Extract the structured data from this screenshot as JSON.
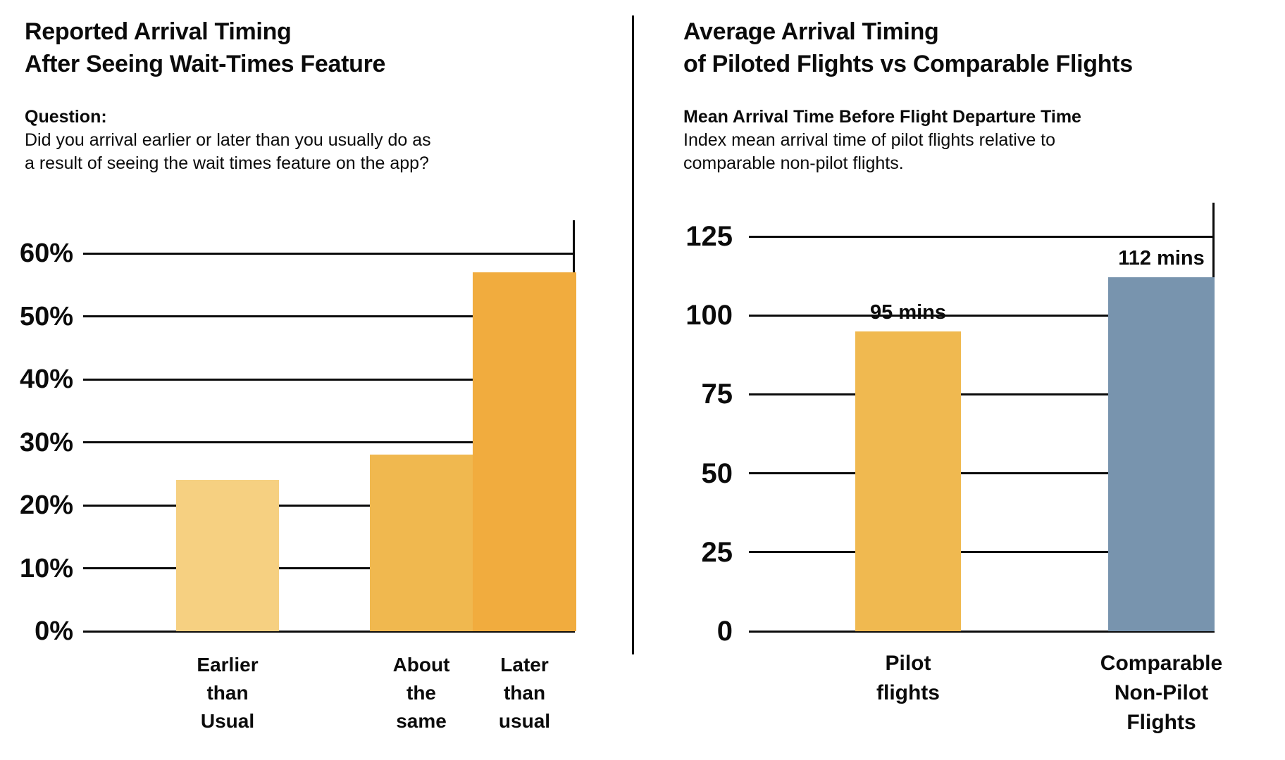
{
  "page": {
    "background": "#ffffff",
    "ink_color": "#0b0b0b"
  },
  "left_panel": {
    "title_lines": [
      "Reported Arrival Timing",
      "After Seeing Wait-Times Feature"
    ],
    "question_label": "Question:",
    "question_lines": [
      "Did you arrival earlier or later than you usually do as",
      "a result of seeing the wait times feature on the app?"
    ]
  },
  "right_panel": {
    "title_lines": [
      "Average Arrival Timing",
      "of Piloted Flights vs Comparable Flights"
    ],
    "subtitle_label": "Mean Arrival Time Before Flight Departure Time",
    "subtitle_lines": [
      "Index mean arrival time of pilot flights relative to",
      "comparable non-pilot flights."
    ]
  },
  "chart_data": [
    {
      "type": "bar",
      "title": "Reported Arrival Timing After Seeing Wait-Times Feature",
      "categories": [
        "Earlier than Usual",
        "About the same",
        "Later than usual"
      ],
      "category_lines": [
        [
          "Earlier",
          "than",
          "Usual"
        ],
        [
          "About",
          "the",
          "same"
        ],
        [
          "Later",
          "than",
          "usual"
        ]
      ],
      "values": [
        24,
        28,
        57
      ],
      "value_unit": "%",
      "data_labels": null,
      "yticks": [
        60,
        50,
        40,
        30,
        20,
        10,
        0
      ],
      "ytick_labels": [
        "60%",
        "50%",
        "40%",
        "30%",
        "20%",
        "10%",
        "0%"
      ],
      "ylim": [
        0,
        60
      ],
      "grid": true,
      "legend": false,
      "bar_colors": [
        "#F6D081",
        "#F0B84F",
        "#F1AC3E"
      ]
    },
    {
      "type": "bar",
      "title": "Average Arrival Timing of Piloted Flights vs Comparable Flights",
      "categories": [
        "Pilot flights",
        "Comparable Non-Pilot Flights"
      ],
      "category_lines": [
        [
          "Pilot",
          "flights"
        ],
        [
          "Comparable",
          "Non-Pilot",
          "Flights"
        ]
      ],
      "values": [
        95,
        112
      ],
      "value_unit": "mins",
      "data_labels": [
        "95 mins",
        "112 mins"
      ],
      "yticks": [
        125,
        100,
        75,
        50,
        25,
        0
      ],
      "ytick_labels": [
        "125",
        "100",
        "75",
        "50",
        "25",
        "0"
      ],
      "ylim": [
        0,
        125
      ],
      "grid": true,
      "legend": false,
      "bar_colors": [
        "#F0B950",
        "#7894AE"
      ]
    }
  ]
}
